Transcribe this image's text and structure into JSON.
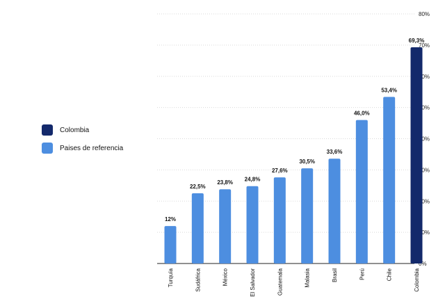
{
  "chart_data": {
    "type": "bar",
    "categories": [
      "Turquía",
      "Sudáfrica",
      "México",
      "El Salvador",
      "Guatemala",
      "Malasia",
      "Brasil",
      "Perú",
      "Chile",
      "Colombia"
    ],
    "values": [
      12,
      22.5,
      23.8,
      24.8,
      27.6,
      30.5,
      33.6,
      46.0,
      53.4,
      69.3
    ],
    "data_labels": [
      "12%",
      "22,5%",
      "23,8%",
      "24,8%",
      "27,6%",
      "30,5%",
      "33,6%",
      "46,0%",
      "53,4%",
      "69,3%"
    ],
    "highlight": [
      "referencia",
      "referencia",
      "referencia",
      "referencia",
      "referencia",
      "referencia",
      "referencia",
      "referencia",
      "referencia",
      "colombia"
    ],
    "ylim": [
      0,
      80
    ],
    "yticks": [
      0,
      10,
      20,
      30,
      40,
      50,
      60,
      70,
      80
    ],
    "ytick_labels": [
      "0%",
      "10%",
      "20%",
      "30%",
      "40%",
      "50%",
      "60%",
      "70%",
      "80%"
    ],
    "y_axis_side": "right",
    "grid": true,
    "legend_position": "left",
    "legend": [
      {
        "label": "Colombia",
        "color": "#13296b"
      },
      {
        "label": "Paises de referencia",
        "color": "#4d8ee0"
      }
    ],
    "colors": {
      "colombia": "#13296b",
      "referencia": "#4d8ee0",
      "grid": "#d9d9d9",
      "axis": "#222222"
    }
  }
}
